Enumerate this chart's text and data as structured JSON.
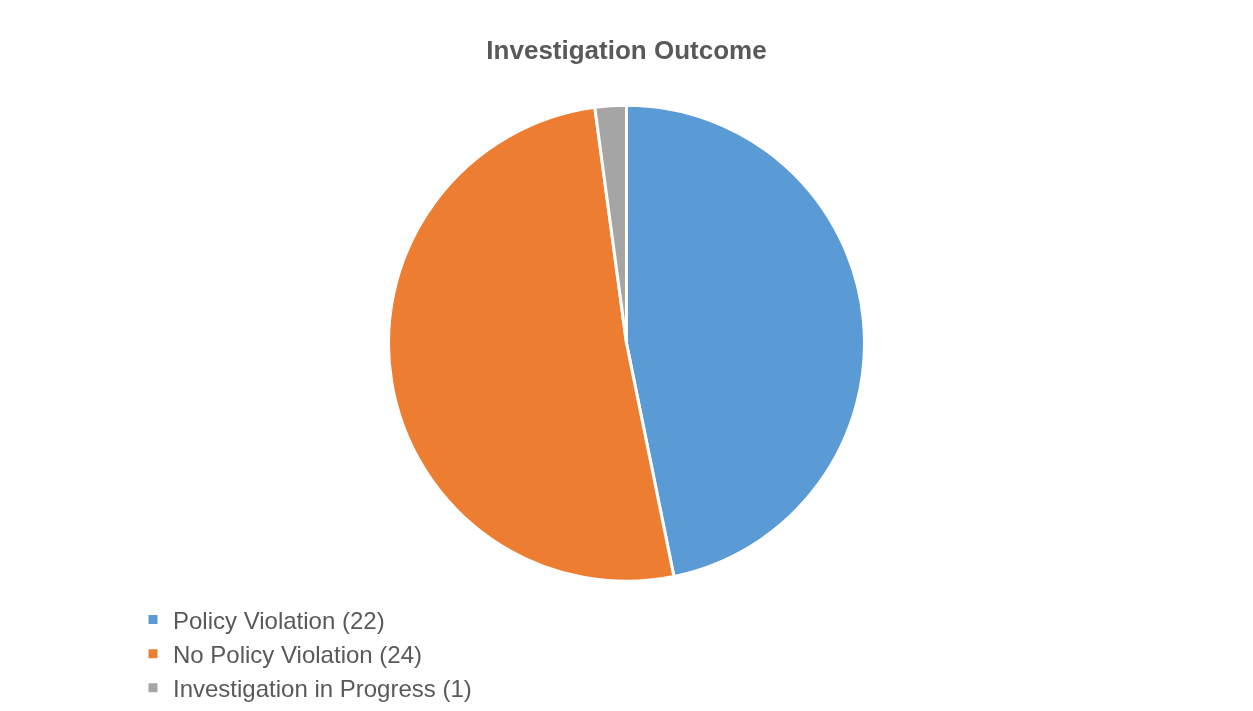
{
  "chart_data": {
    "type": "pie",
    "title": "Investigation Outcome",
    "categories": [
      "Policy Violation (22)",
      "No Policy Violation (24)",
      "Investigation in Progress (1)"
    ],
    "values": [
      22,
      24,
      1
    ],
    "colors": [
      "#5b9bd5",
      "#ed7d31",
      "#a5a5a5"
    ],
    "legend": "bottom"
  }
}
